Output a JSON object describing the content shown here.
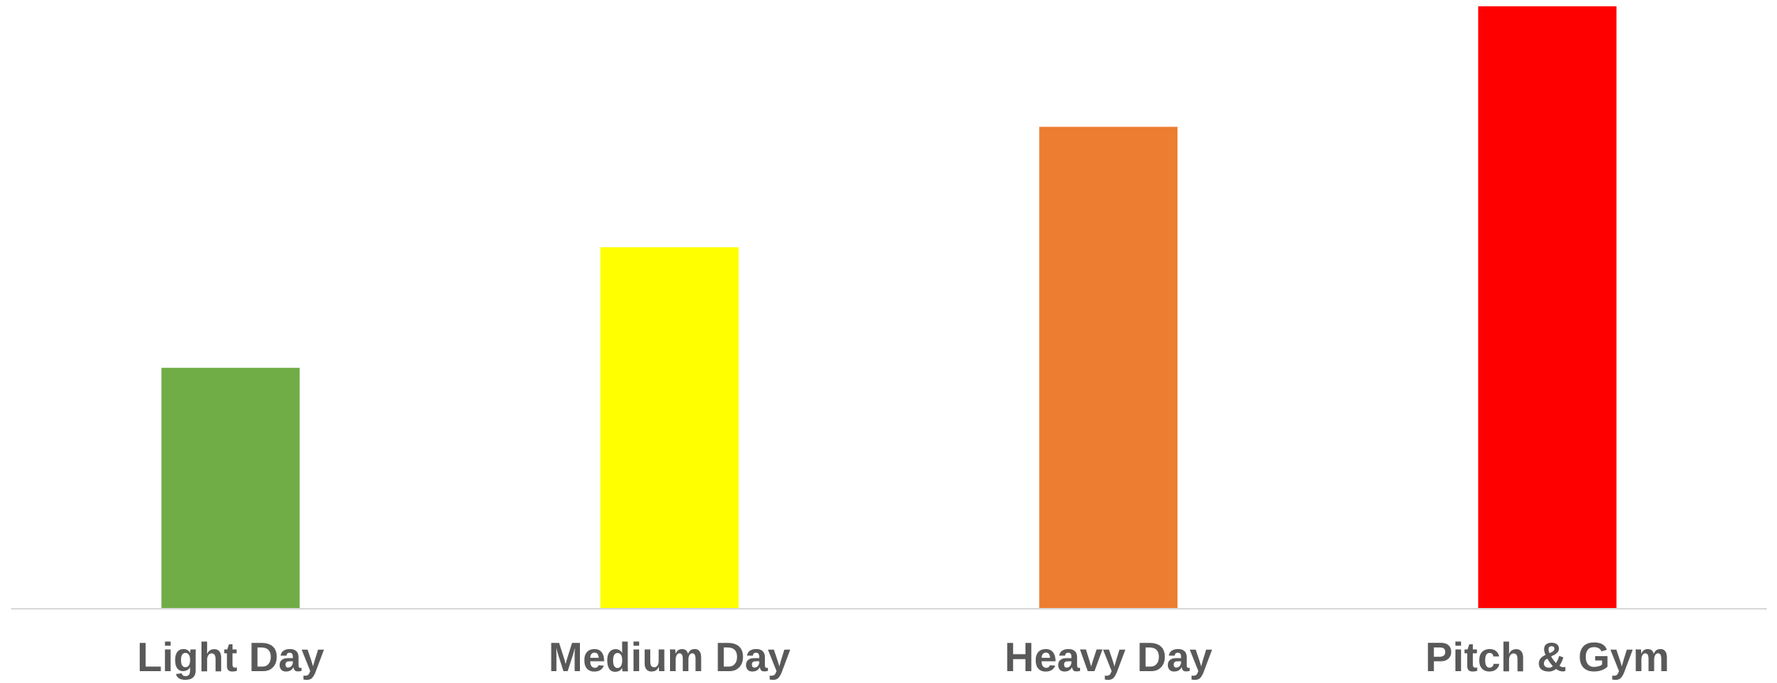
{
  "chart_data": {
    "type": "bar",
    "categories": [
      "Light Day",
      "Medium Day",
      "Heavy Day",
      "Pitch & Gym"
    ],
    "values": [
      2,
      3,
      4,
      5
    ],
    "colors": [
      "#70AD47",
      "#FFFF00",
      "#ED7D31",
      "#FF0000"
    ],
    "title": "",
    "xlabel": "",
    "ylabel": "",
    "ylim": [
      0,
      5
    ],
    "grid": false,
    "legend": "none",
    "axis_color": "#D9D9D9",
    "label_color": "#595959"
  }
}
